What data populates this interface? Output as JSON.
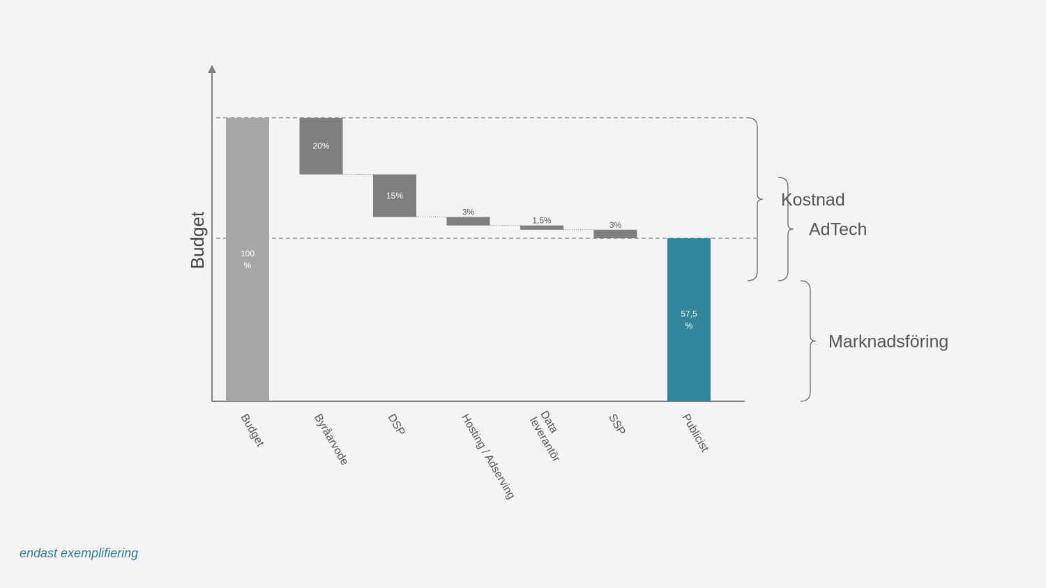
{
  "chart_data": {
    "type": "waterfall",
    "ylabel": "Budget",
    "categories": [
      "Budget",
      "Byråarvode",
      "DSP",
      "Hosting / Adserving",
      "Data leverantör",
      "SSP",
      "Publicist"
    ],
    "values": [
      100,
      -20,
      -15,
      -3,
      -1.5,
      -3,
      57.5
    ],
    "data_labels": [
      [
        "100",
        "%"
      ],
      [
        "20%"
      ],
      [
        "15%"
      ],
      [
        "3%"
      ],
      [
        "1,5%"
      ],
      [
        "3%"
      ],
      [
        "57,5",
        "%"
      ]
    ],
    "bar_colors": [
      "#a6a6a6",
      "#7f7f7f",
      "#7f7f7f",
      "#7f7f7f",
      "#7f7f7f",
      "#7f7f7f",
      "#31869b"
    ],
    "brackets": [
      {
        "label": "Kostnad",
        "from": 42.5,
        "to": 100
      },
      {
        "label": "AdTech",
        "from": 42.5,
        "to": 79
      },
      {
        "label": "Marknadsföring",
        "from": 0,
        "to": 42.5
      }
    ],
    "ylim": [
      0,
      100
    ]
  },
  "footnote": "endast exemplifiering"
}
